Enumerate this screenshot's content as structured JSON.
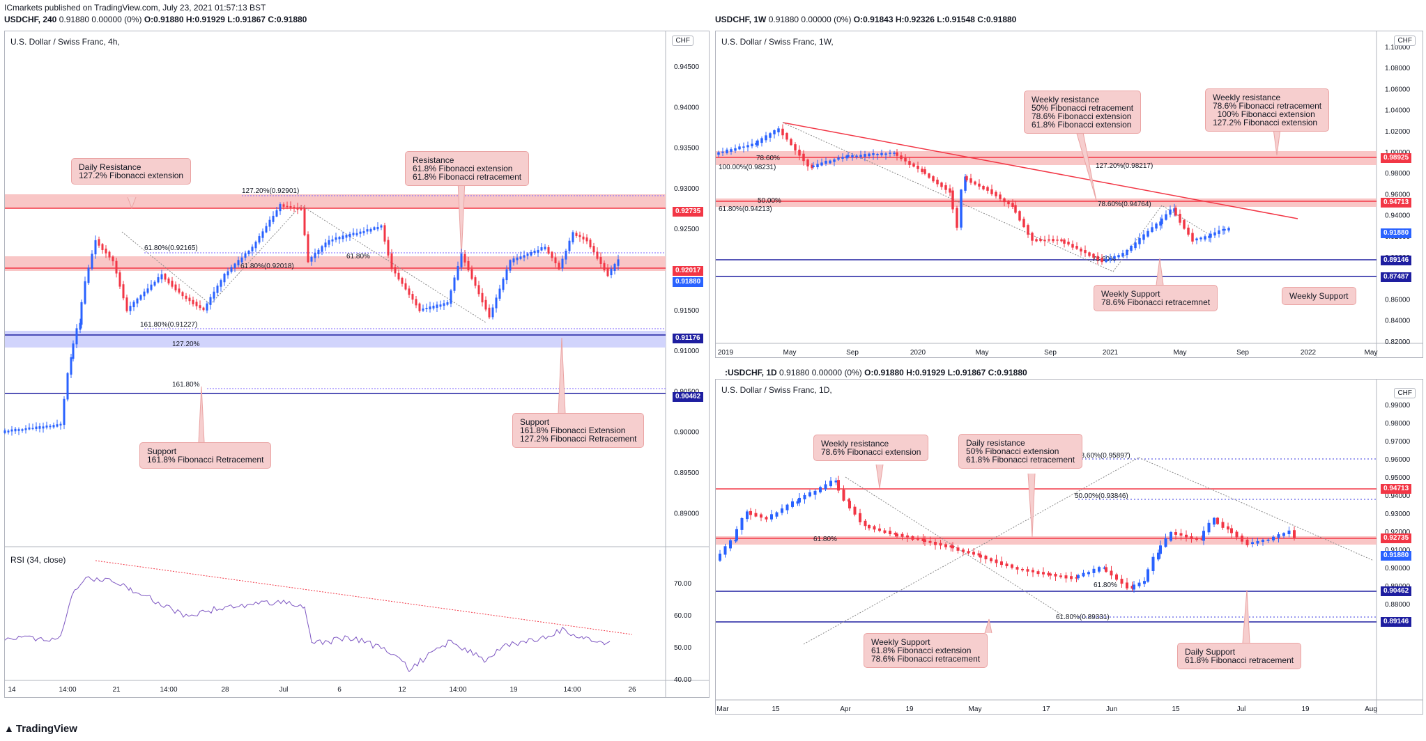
{
  "page": {
    "publisher_line": "ICmarkets published on TradingView.com, July 23, 2021 01:57:13 BST",
    "brand": "TradingView",
    "brand_icon": "tradingview-logo-icon"
  },
  "colors": {
    "bull": "#2962ff",
    "bear": "#f23645",
    "res_zone": "#f9c6c6",
    "sup_zone": "#d1d4fc",
    "note_bg": "#f6cece",
    "rsi": "#7e57c2"
  },
  "charts": {
    "h4": {
      "header": {
        "symbol": "USDCHF, 240",
        "o": "O:0.91880",
        "h": "H:0.91929",
        "l": "L:0.91867",
        "c": "C:0.91880",
        "change": "0.91880 0.00000 (0%)"
      },
      "title": "U.S. Dollar / Swiss Franc, 4h,",
      "currency": "CHF",
      "y_ticks": [
        "0.94500",
        "0.94000",
        "0.93500",
        "0.93000",
        "0.92500",
        "0.92000",
        "0.91500",
        "0.91000",
        "0.90500",
        "0.90000",
        "0.89500",
        "0.89000"
      ],
      "x_ticks": [
        "14",
        "14:00",
        "21",
        "14:00",
        "28",
        "Jul",
        "6",
        "12",
        "14:00",
        "19",
        "14:00",
        "26"
      ],
      "price_tags": [
        "0.92735",
        "0.92017",
        "0.91880",
        "0.91176",
        "0.90462"
      ],
      "fib_labels": [
        "127.20%(0.92901)",
        "61.80%(0.92165)",
        "61.80%(0.92018)",
        "61.80%",
        "161.80%(0.91227)",
        "127.20%",
        "161.80%"
      ],
      "notes": {
        "daily_resistance": "Daily Resistance\n127.2% Fibonacci extension",
        "resistance": "Resistance\n61.8% Fibonacci extension\n61.8% Fibonacci retracement",
        "support_left": "Support\n161.8% Fibonacci Retracement",
        "support_right": "Support\n161.8% Fibonacci Extension\n127.2% Fibonacci Retracement"
      },
      "rsi": {
        "label": "RSI (34, close)",
        "ticks": [
          "70.00",
          "60.00",
          "50.00",
          "40.00"
        ]
      }
    },
    "w1": {
      "header": {
        "symbol": "USDCHF, 1W",
        "o": "O:0.91843",
        "h": "H:0.92326",
        "l": "L:0.91548",
        "c": "C:0.91880",
        "change": "0.91880 0.00000 (0%)"
      },
      "title": "U.S. Dollar / Swiss Franc, 1W,",
      "currency": "CHF",
      "y_ticks": [
        "1.10000",
        "1.08000",
        "1.06000",
        "1.04000",
        "1.02000",
        "1.00000",
        "0.98000",
        "0.96000",
        "0.94000",
        "0.92000",
        "0.90000",
        "0.88000",
        "0.86000",
        "0.84000",
        "0.82000"
      ],
      "x_ticks": [
        "2019",
        "May",
        "Sep",
        "2020",
        "May",
        "Sep",
        "2021",
        "May",
        "Sep",
        "2022",
        "May"
      ],
      "price_tags": [
        "0.98925",
        "0.94713",
        "0.91880",
        "0.89146",
        "0.87487"
      ],
      "fib_labels": [
        "78.60%",
        "100.00%(0.98231)",
        "127.20%(0.98217)",
        "50.00%",
        "61.80%(0.94213)",
        "78.60%(0.94764)",
        "78.60%"
      ],
      "notes": {
        "weekly_res_1": "Weekly resistance\n50% Fibonacci retracement\n78.6% Fibonacci extension\n61.8% Fibonacci extension",
        "weekly_res_2": "Weekly resistance\n78.6% Fibonacci retracement\n  100% Fibonacci extension\n127.2% Fibonacci extension",
        "weekly_sup_1": "Weekly Support\n78.6% Fibonacci retracemnet",
        "weekly_sup_2": "Weekly Support"
      }
    },
    "d1": {
      "header": {
        "symbol": ":USDCHF, 1D",
        "o": "O:0.91880",
        "h": "H:0.91929",
        "l": "L:0.91867",
        "c": "C:0.91880",
        "change": "0.91880 0.00000 (0%)"
      },
      "title": "U.S. Dollar / Swiss Franc, 1D,",
      "currency": "CHF",
      "y_ticks": [
        "0.99000",
        "0.98000",
        "0.97000",
        "0.96000",
        "0.95000",
        "0.94000",
        "0.93000",
        "0.92000",
        "0.91000",
        "0.90000",
        "0.89000",
        "0.88000",
        "0.87000"
      ],
      "x_ticks": [
        "Mar",
        "15",
        "Apr",
        "19",
        "May",
        "17",
        "Jun",
        "15",
        "Jul",
        "19",
        "Aug"
      ],
      "price_tags": [
        "0.94713",
        "0.92735",
        "0.91880",
        "0.90462",
        "0.89146"
      ],
      "fib_labels": [
        "78.60%(0.95897)",
        "50.00%(0.93846)",
        "61.80%",
        "61.80%",
        "61.80%(0.89331)"
      ],
      "notes": {
        "weekly_res": "Weekly resistance\n78.6% Fibonacci extension",
        "daily_res": "Daily resistance\n50% Fibonacci extension\n61.8% Fibonacci retracement",
        "weekly_sup": "Weekly Support\n61.8% Fibonacci extension\n78.6% Fibonacci retracement",
        "daily_sup": "Daily Support\n61.8% Fibonacci retracement"
      }
    }
  }
}
